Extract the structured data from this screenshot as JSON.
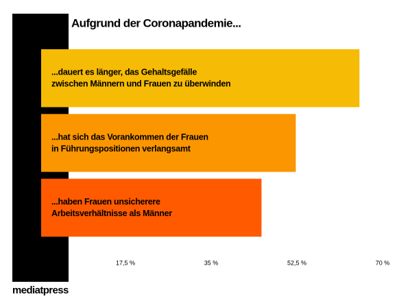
{
  "chart_data": {
    "type": "bar",
    "orientation": "horizontal",
    "title": "Aufgrund der Coronapandemie...",
    "categories": [
      [
        "...dauert es länger, das Gehaltsgefälle",
        "zwischen Männern und Frauen zu überwinden"
      ],
      [
        "...hat sich das Vorankommen der Frauen",
        "in Führungspositionen verlangsamt"
      ],
      [
        "...haben Frauen unsicherere",
        "Arbeitsverhältnisse als Männer"
      ]
    ],
    "values": [
      65,
      52,
      45
    ],
    "colors": [
      "#f6bb05",
      "#fb9600",
      "#ff5a00"
    ],
    "xlim": [
      0,
      70
    ],
    "xticks": [
      {
        "value": 17.5,
        "label": "17,5 %"
      },
      {
        "value": 35,
        "label": "35 %"
      },
      {
        "value": 52.5,
        "label": "52,5 %"
      },
      {
        "value": 70,
        "label": "70 %"
      }
    ],
    "grid": false,
    "logo": "mediatpress"
  }
}
